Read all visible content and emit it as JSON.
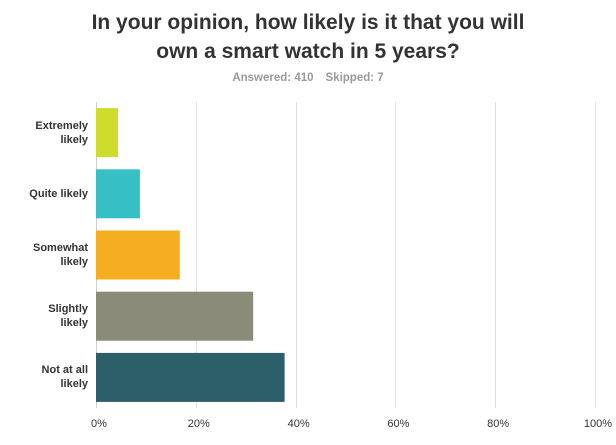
{
  "chart_data": {
    "type": "bar",
    "orientation": "horizontal",
    "title_lines": [
      "In your opinion, how likely is it that you will",
      "own a smart watch in 5 years?"
    ],
    "answered": "Answered: 410",
    "skipped": "Skipped: 7",
    "categories": [
      [
        "Extremely",
        "likely"
      ],
      [
        "Quite likely"
      ],
      [
        "Somewhat",
        "likely"
      ],
      [
        "Slightly",
        "likely"
      ],
      [
        "Not at all",
        "likely"
      ]
    ],
    "values": [
      4.4,
      8.8,
      16.8,
      31.5,
      37.8
    ],
    "colors": [
      "#cedd2b",
      "#36bfc4",
      "#f5ae20",
      "#8b8b79",
      "#2d5f6b"
    ],
    "xlim": [
      0,
      100
    ],
    "xticks": [
      0,
      20,
      40,
      60,
      80,
      100
    ],
    "xtick_labels": [
      "0%",
      "20%",
      "40%",
      "60%",
      "80%",
      "100%"
    ],
    "grid": true,
    "legend": "none"
  }
}
